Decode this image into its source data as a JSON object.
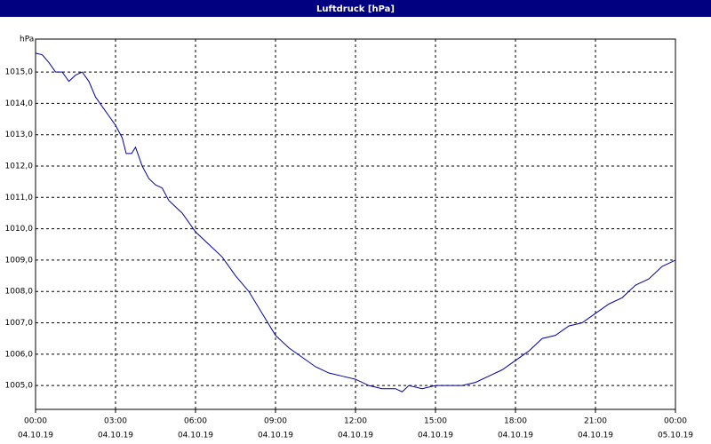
{
  "chart_data": {
    "type": "line",
    "title": "Luftdruck [hPa]",
    "y_unit": "hPa",
    "x": [
      0,
      0.25,
      0.5,
      0.75,
      1,
      1.25,
      1.5,
      1.75,
      2,
      2.25,
      2.5,
      2.75,
      3,
      3.25,
      3.4,
      3.6,
      3.75,
      4,
      4.25,
      4.5,
      4.75,
      5,
      5.5,
      6,
      6.5,
      7,
      7.5,
      8,
      8.5,
      9,
      9.5,
      10,
      10.5,
      11,
      11.5,
      12,
      12.5,
      13,
      13.5,
      13.75,
      14,
      14.5,
      15,
      15.5,
      16,
      16.5,
      17,
      17.5,
      18,
      18.5,
      19,
      19.5,
      20,
      20.5,
      21,
      21.5,
      22,
      22.5,
      23,
      23.5,
      24
    ],
    "series": [
      {
        "name": "Luftdruck",
        "color": "#0000a0",
        "values": [
          1015.6,
          1015.55,
          1015.3,
          1015.0,
          1015.0,
          1014.7,
          1014.9,
          1015.0,
          1014.7,
          1014.2,
          1013.9,
          1013.6,
          1013.3,
          1012.9,
          1012.4,
          1012.4,
          1012.6,
          1012.0,
          1011.6,
          1011.4,
          1011.3,
          1010.9,
          1010.5,
          1009.9,
          1009.5,
          1009.1,
          1008.5,
          1008.0,
          1007.3,
          1006.6,
          1006.2,
          1005.9,
          1005.6,
          1005.4,
          1005.3,
          1005.2,
          1005.0,
          1004.9,
          1004.9,
          1004.8,
          1005.0,
          1004.9,
          1005.0,
          1005.0,
          1005.0,
          1005.1,
          1005.3,
          1005.5,
          1005.8,
          1006.1,
          1006.5,
          1006.6,
          1006.9,
          1007.0,
          1007.3,
          1007.6,
          1007.8,
          1008.2,
          1008.4,
          1008.8,
          1009.0
        ]
      }
    ],
    "xlim": [
      0,
      24
    ],
    "ylim": [
      1004.24,
      1016.05
    ],
    "xticks": [
      {
        "value": 0,
        "label": "00:00",
        "date": "04.10.19"
      },
      {
        "value": 3,
        "label": "03:00",
        "date": "04.10.19"
      },
      {
        "value": 6,
        "label": "06:00",
        "date": "04.10.19"
      },
      {
        "value": 9,
        "label": "09:00",
        "date": "04.10.19"
      },
      {
        "value": 12,
        "label": "12:00",
        "date": "04.10.19"
      },
      {
        "value": 15,
        "label": "15:00",
        "date": "04.10.19"
      },
      {
        "value": 18,
        "label": "18:00",
        "date": "04.10.19"
      },
      {
        "value": 21,
        "label": "21:00",
        "date": "04.10.19"
      },
      {
        "value": 24,
        "label": "00:00",
        "date": "05.10.19"
      }
    ],
    "yticks": [
      {
        "value": 1005,
        "label": "1005,0"
      },
      {
        "value": 1006,
        "label": "1006,0"
      },
      {
        "value": 1007,
        "label": "1007,0"
      },
      {
        "value": 1008,
        "label": "1008,0"
      },
      {
        "value": 1009,
        "label": "1009,0"
      },
      {
        "value": 1010,
        "label": "1010,0"
      },
      {
        "value": 1011,
        "label": "1011,0"
      },
      {
        "value": 1012,
        "label": "1012,0"
      },
      {
        "value": 1013,
        "label": "1013,0"
      },
      {
        "value": 1014,
        "label": "1014,0"
      },
      {
        "value": 1015,
        "label": "1015,0"
      }
    ],
    "grid": true
  }
}
